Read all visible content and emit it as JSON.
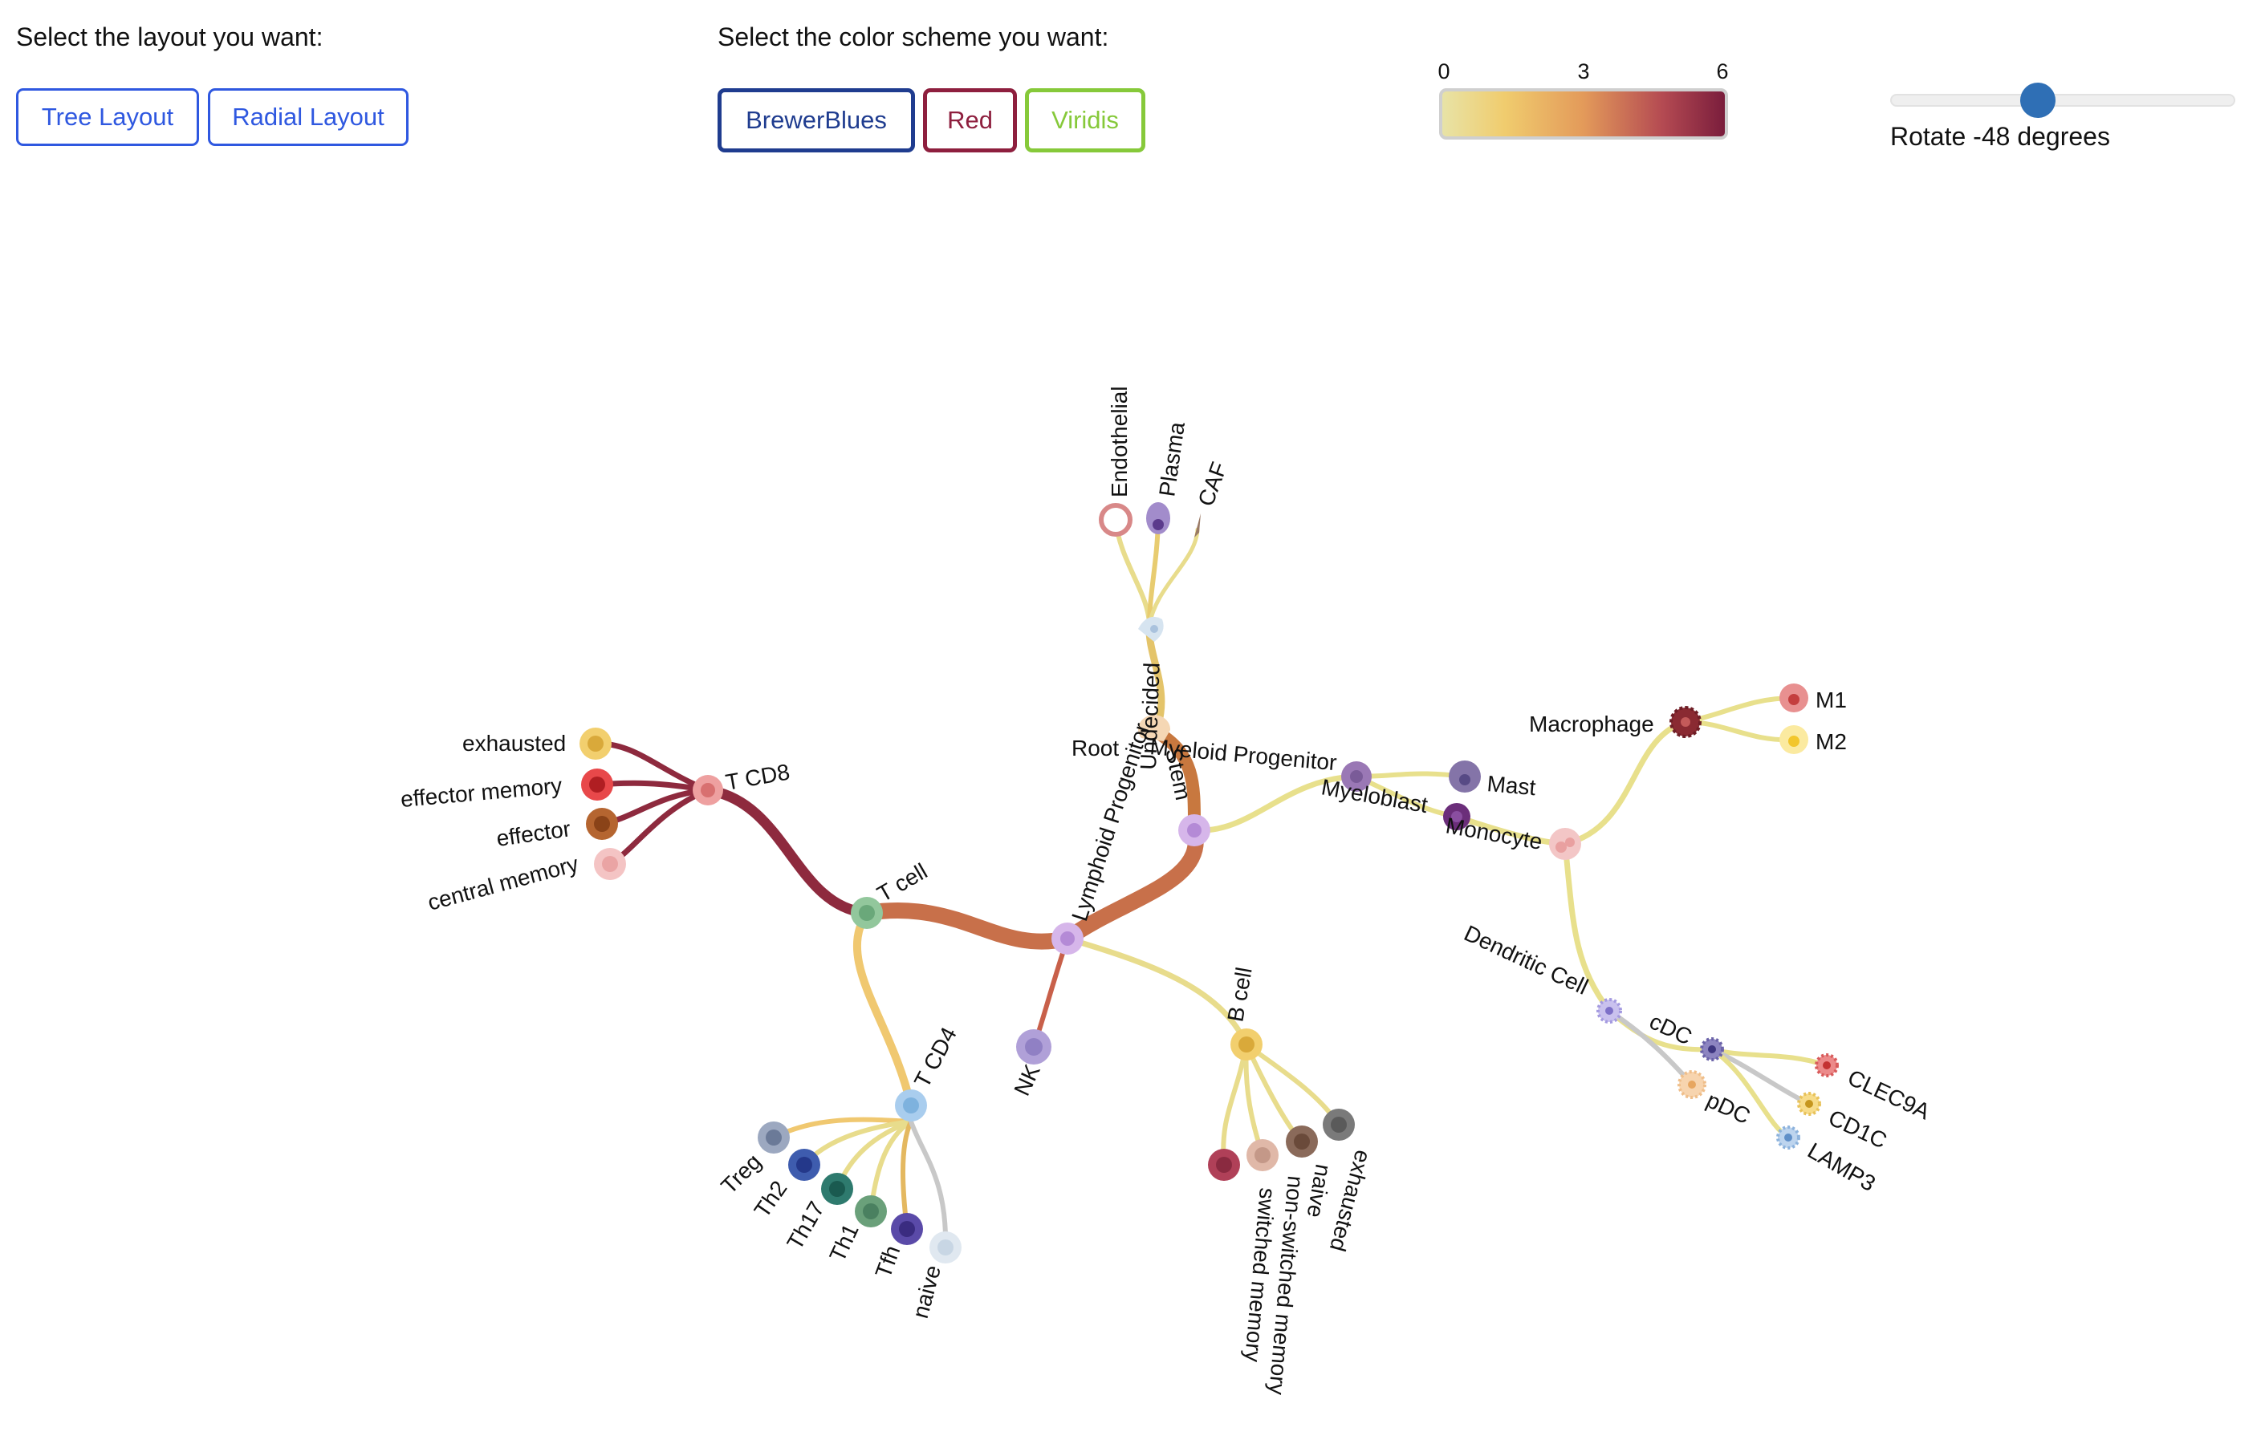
{
  "controls": {
    "layout_prompt": "Select the layout you want:",
    "tree_label": "Tree Layout",
    "radial_label": "Radial Layout",
    "color_prompt": "Select the color scheme you want:",
    "blues_label": "BrewerBlues",
    "red_label": "Red",
    "viridis_label": "Viridis",
    "rotate_label": "Rotate -48 degrees"
  },
  "legend": {
    "ticks": [
      "0",
      "3",
      "6"
    ],
    "range": [
      0,
      6
    ]
  },
  "slider": {
    "value": -48
  },
  "colors": {
    "blues": "#1f3c8f",
    "red": "#8e1f3e",
    "viridis": "#86c93a",
    "slider": "#2f6fb5"
  },
  "tree": {
    "root": "Root",
    "stem": "Stem",
    "undecided": "Undecided",
    "endothelial": "Endothelial",
    "plasma": "Plasma",
    "caf": "CAF",
    "lymphoid": "Lymphoid Progenitor",
    "myeloid": "Myeloid Progenitor",
    "myeloblast": "Myeloblast",
    "monocyte": "Monocyte",
    "mast": "Mast",
    "macrophage": "Macrophage",
    "m1": "M1",
    "m2": "M2",
    "dendritic": "Dendritic Cell",
    "cdc": "cDC",
    "pdc": "pDC",
    "clec9a": "CLEC9A",
    "cd1c": "CD1C",
    "lamp3": "LAMP3",
    "tcell": "T cell",
    "tcd8": "T CD8",
    "exhausted8": "exhausted",
    "effmem": "effector memory",
    "effector": "effector",
    "centralmem": "central memory",
    "tcd4": "T CD4",
    "treg": "Treg",
    "th2": "Th2",
    "th17": "Th17",
    "th1": "Th1",
    "tfh": "Tfh",
    "naive4": "naive",
    "nk": "NK",
    "bcell": "B cell",
    "switched": "switched memory",
    "nonswitched": "non-switched memory",
    "naiveb": "naive",
    "exhaustedb": "exhausted"
  }
}
